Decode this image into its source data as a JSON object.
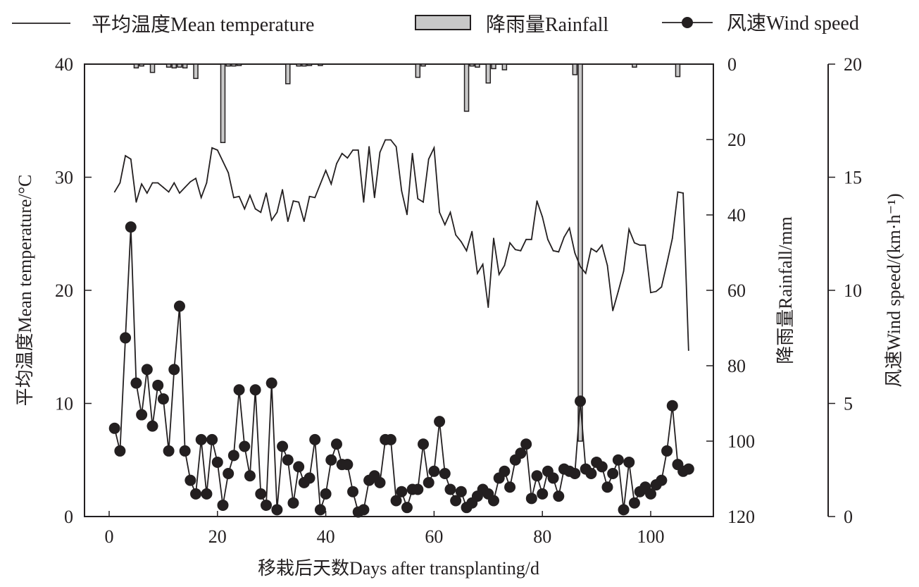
{
  "chart_data": {
    "type": "line",
    "title": "",
    "legend": {
      "placement": "top",
      "entries": [
        {
          "key": "temperature",
          "label": "平均温度Mean temperature",
          "style": "line"
        },
        {
          "key": "rainfall",
          "label": "降雨量Rainfall",
          "style": "bar"
        },
        {
          "key": "wind",
          "label": "风速Wind speed",
          "style": "line-marker"
        }
      ]
    },
    "xlabel": "移栽后天数Days after transplanting/d",
    "xlim": [
      -6,
      111
    ],
    "xticks": [
      "0",
      "20",
      "40",
      "60",
      "80",
      "100"
    ],
    "xtick_values": [
      0,
      20,
      40,
      60,
      80,
      100
    ],
    "y_left": {
      "label": "平均温度Mean temperature/°C",
      "lim": [
        0,
        40
      ],
      "ticks": [
        "0",
        "10",
        "20",
        "30",
        "40"
      ],
      "tick_values": [
        0,
        10,
        20,
        30,
        40
      ]
    },
    "y_right_rain": {
      "label": "降雨量Rainfall/mm",
      "lim": [
        0,
        120
      ],
      "inverted": true,
      "ticks": [
        "0",
        "20",
        "40",
        "60",
        "80",
        "100",
        "120"
      ],
      "tick_values": [
        0,
        20,
        40,
        60,
        80,
        100,
        120
      ]
    },
    "y_right_wind": {
      "label": "风速Wind speed/(km·h⁻¹)",
      "lim": [
        0,
        20
      ],
      "ticks": [
        "0",
        "5",
        "10",
        "15",
        "20"
      ],
      "tick_values": [
        0,
        5,
        10,
        15,
        20
      ]
    },
    "series": [
      {
        "name": "平均温度Mean temperature",
        "axis": "left",
        "color": "#231f20",
        "x": [
          1,
          2,
          3,
          4,
          5,
          6,
          7,
          8,
          9,
          10,
          11,
          12,
          13,
          14,
          15,
          16,
          17,
          18,
          19,
          20,
          21,
          22,
          23,
          24,
          25,
          26,
          27,
          28,
          29,
          30,
          31,
          32,
          33,
          34,
          35,
          36,
          37,
          38,
          39,
          40,
          41,
          42,
          43,
          44,
          45,
          46,
          47,
          48,
          49,
          50,
          51,
          52,
          53,
          54,
          55,
          56,
          57,
          58,
          59,
          60,
          61,
          62,
          63,
          64,
          65,
          66,
          67,
          68,
          69,
          70,
          71,
          72,
          73,
          74,
          75,
          76,
          77,
          78,
          79,
          80,
          81,
          82,
          83,
          84,
          85,
          86,
          87,
          88,
          89,
          90,
          91,
          92,
          93,
          94,
          95,
          96,
          97,
          98,
          99,
          100,
          101,
          102,
          103,
          104,
          105,
          106,
          107
        ],
        "values": [
          28.7,
          29.5,
          31.9,
          31.6,
          27.8,
          29.4,
          28.6,
          29.5,
          29.5,
          29.1,
          28.7,
          29.5,
          28.6,
          29.1,
          29.6,
          29.9,
          28.2,
          29.5,
          32.6,
          32.4,
          31.4,
          30.4,
          28.2,
          28.3,
          27.2,
          28.4,
          27.2,
          26.9,
          28.6,
          26.2,
          26.9,
          28.9,
          26.1,
          27.9,
          27.8,
          26.1,
          28.3,
          28.2,
          29.4,
          30.6,
          29.4,
          31.2,
          32.1,
          31.7,
          32.4,
          32.4,
          27.8,
          32.7,
          28.2,
          32.2,
          33.3,
          33.3,
          32.7,
          28.8,
          26.7,
          32.1,
          28.1,
          27.8,
          31.6,
          32.6,
          26.9,
          25.8,
          26.9,
          24.9,
          24.3,
          23.5,
          25.2,
          21.5,
          22.3,
          18.5,
          24.6,
          21.4,
          22.2,
          24.2,
          23.6,
          23.5,
          24.5,
          24.5,
          27.9,
          26.5,
          24.5,
          23.5,
          23.4,
          24.7,
          25.5,
          23.3,
          22.1,
          21.5,
          23.7,
          23.4,
          24.0,
          22.2,
          18.2,
          19.9,
          21.7,
          25.4,
          24.2,
          24.0,
          24.0,
          19.8,
          19.9,
          20.3,
          22.4,
          24.6,
          28.7,
          28.6,
          14.7
        ]
      },
      {
        "name": "降雨量Rainfall",
        "axis": "right_rain",
        "color": "#c0c0c0",
        "x": [
          5,
          6,
          8,
          11,
          12,
          13,
          14,
          16,
          21,
          22,
          23,
          24,
          33,
          35,
          36,
          37,
          39,
          57,
          58,
          66,
          67,
          68,
          70,
          71,
          73,
          86,
          87,
          97,
          105
        ],
        "values": [
          1.0,
          0.5,
          2.2,
          0.8,
          1.0,
          0.8,
          1.0,
          3.8,
          20.8,
          0.5,
          0.5,
          0.3,
          5.2,
          0.5,
          0.5,
          0.3,
          0.3,
          3.5,
          0.5,
          12.5,
          0.5,
          0.8,
          5.0,
          1.2,
          1.5,
          2.8,
          100.0,
          0.8,
          3.3
        ]
      },
      {
        "name": "风速Wind speed",
        "axis": "right_wind",
        "color": "#231f20",
        "x": [
          1,
          2,
          3,
          4,
          5,
          6,
          7,
          8,
          9,
          10,
          11,
          12,
          13,
          14,
          15,
          16,
          17,
          18,
          19,
          20,
          21,
          22,
          23,
          24,
          25,
          26,
          27,
          28,
          29,
          30,
          31,
          32,
          33,
          34,
          35,
          36,
          37,
          38,
          39,
          40,
          41,
          42,
          43,
          44,
          45,
          46,
          47,
          48,
          49,
          50,
          51,
          52,
          53,
          54,
          55,
          56,
          57,
          58,
          59,
          60,
          61,
          62,
          63,
          64,
          65,
          66,
          67,
          68,
          69,
          70,
          71,
          72,
          73,
          74,
          75,
          76,
          77,
          78,
          79,
          80,
          81,
          82,
          83,
          84,
          85,
          86,
          87,
          88,
          89,
          90,
          91,
          92,
          93,
          94,
          95,
          96,
          97,
          98,
          99,
          100,
          101,
          102,
          103,
          104,
          105,
          106,
          107
        ],
        "values": [
          3.9,
          2.9,
          7.9,
          12.8,
          5.9,
          4.5,
          6.5,
          4.0,
          5.8,
          5.2,
          2.9,
          6.5,
          9.3,
          2.9,
          1.6,
          1.0,
          3.4,
          1.0,
          3.4,
          2.4,
          0.5,
          1.9,
          2.7,
          5.6,
          3.1,
          1.8,
          5.6,
          1.0,
          0.5,
          5.9,
          0.3,
          3.1,
          2.5,
          0.6,
          2.2,
          1.5,
          1.7,
          3.4,
          0.3,
          1.0,
          2.5,
          3.2,
          2.3,
          2.3,
          1.1,
          0.2,
          0.3,
          1.6,
          1.8,
          1.5,
          3.4,
          3.4,
          0.7,
          1.1,
          0.4,
          1.2,
          1.2,
          3.2,
          1.5,
          2.0,
          4.2,
          1.9,
          1.2,
          0.7,
          1.1,
          0.4,
          0.6,
          0.9,
          1.2,
          1.0,
          0.7,
          1.7,
          2.0,
          1.3,
          2.5,
          2.8,
          3.2,
          0.8,
          1.8,
          1.0,
          2.0,
          1.7,
          0.9,
          2.1,
          2.0,
          1.9,
          5.1,
          2.1,
          1.9,
          2.4,
          2.2,
          1.3,
          1.9,
          2.5,
          0.3,
          2.4,
          0.6,
          1.1,
          1.3,
          1.0,
          1.4,
          1.6,
          2.9,
          4.9,
          2.3,
          2.0,
          2.1
        ]
      }
    ]
  }
}
